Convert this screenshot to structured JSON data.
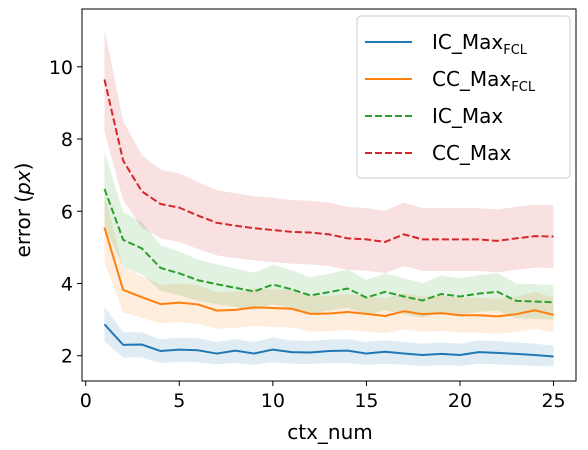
{
  "chart_data": {
    "type": "line",
    "xlabel": "ctx_num",
    "ylabel_prefix": "error (",
    "ylabel_italic": "px",
    "ylabel_suffix": ")",
    "xlim": [
      -0.2,
      26.2
    ],
    "ylim": [
      1.3,
      11.6
    ],
    "xticks": [
      0,
      5,
      10,
      15,
      20,
      25
    ],
    "yticks": [
      2,
      4,
      6,
      8,
      10
    ],
    "grid": false,
    "legend_position": "top-right",
    "x": [
      1,
      2,
      3,
      4,
      5,
      6,
      7,
      8,
      9,
      10,
      11,
      12,
      13,
      14,
      15,
      16,
      17,
      18,
      19,
      20,
      21,
      22,
      23,
      24,
      25
    ],
    "series": [
      {
        "name_main": "IC_Max",
        "name_sub": "FCL",
        "color": "#1f77b4",
        "dash": "solid",
        "values": [
          2.87,
          2.3,
          2.31,
          2.13,
          2.17,
          2.15,
          2.06,
          2.14,
          2.06,
          2.17,
          2.1,
          2.09,
          2.13,
          2.14,
          2.06,
          2.11,
          2.06,
          2.02,
          2.05,
          2.02,
          2.1,
          2.08,
          2.05,
          2.02,
          1.98
        ],
        "lower": [
          2.4,
          1.95,
          1.95,
          1.8,
          1.83,
          1.82,
          1.76,
          1.8,
          1.75,
          1.82,
          1.78,
          1.77,
          1.8,
          1.8,
          1.75,
          1.78,
          1.75,
          1.72,
          1.74,
          1.72,
          1.78,
          1.76,
          1.74,
          1.72,
          1.7
        ],
        "upper": [
          3.35,
          2.65,
          2.65,
          2.45,
          2.5,
          2.48,
          2.38,
          2.46,
          2.38,
          2.5,
          2.42,
          2.41,
          2.45,
          2.46,
          2.38,
          2.43,
          2.38,
          2.33,
          2.37,
          2.33,
          2.42,
          2.4,
          2.37,
          2.33,
          2.28
        ]
      },
      {
        "name_main": "CC_Max",
        "name_sub": "FCL",
        "color": "#ff7f0e",
        "dash": "solid",
        "values": [
          5.55,
          3.82,
          3.62,
          3.43,
          3.47,
          3.42,
          3.25,
          3.27,
          3.34,
          3.32,
          3.3,
          3.16,
          3.17,
          3.21,
          3.16,
          3.1,
          3.23,
          3.15,
          3.18,
          3.12,
          3.12,
          3.09,
          3.15,
          3.26,
          3.13
        ],
        "lower": [
          4.6,
          3.2,
          3.05,
          2.9,
          2.93,
          2.88,
          2.75,
          2.77,
          2.82,
          2.8,
          2.78,
          2.67,
          2.68,
          2.71,
          2.67,
          2.62,
          2.73,
          2.66,
          2.69,
          2.64,
          2.64,
          2.61,
          2.66,
          2.75,
          2.65
        ],
        "upper": [
          6.5,
          4.45,
          4.2,
          3.96,
          4.0,
          3.95,
          3.75,
          3.77,
          3.86,
          3.84,
          3.82,
          3.65,
          3.66,
          3.71,
          3.65,
          3.58,
          3.73,
          3.64,
          3.67,
          3.6,
          3.6,
          3.57,
          3.64,
          3.77,
          3.61
        ]
      },
      {
        "name_main": "IC_Max",
        "name_sub": "",
        "color": "#2ca02c",
        "dash": "dashed",
        "values": [
          6.62,
          5.21,
          4.97,
          4.43,
          4.28,
          4.09,
          3.98,
          3.88,
          3.78,
          3.97,
          3.84,
          3.67,
          3.76,
          3.86,
          3.61,
          3.77,
          3.64,
          3.53,
          3.71,
          3.64,
          3.72,
          3.77,
          3.52,
          3.5,
          3.48
        ],
        "lower": [
          5.6,
          4.45,
          4.25,
          3.8,
          3.68,
          3.52,
          3.43,
          3.35,
          3.26,
          3.42,
          3.31,
          3.17,
          3.25,
          3.33,
          3.12,
          3.26,
          3.14,
          3.05,
          3.2,
          3.14,
          3.21,
          3.25,
          3.04,
          3.02,
          3.0
        ],
        "upper": [
          7.65,
          5.98,
          5.7,
          5.06,
          4.88,
          4.66,
          4.53,
          4.41,
          4.3,
          4.52,
          4.37,
          4.17,
          4.27,
          4.39,
          4.1,
          4.28,
          4.14,
          4.01,
          4.22,
          4.14,
          4.23,
          4.29,
          4.0,
          3.98,
          3.96
        ]
      },
      {
        "name_main": "CC_Max",
        "name_sub": "",
        "color": "#d62728",
        "dash": "dashed",
        "values": [
          9.65,
          7.4,
          6.55,
          6.2,
          6.1,
          5.88,
          5.68,
          5.6,
          5.53,
          5.48,
          5.43,
          5.41,
          5.36,
          5.25,
          5.22,
          5.15,
          5.36,
          5.22,
          5.22,
          5.22,
          5.22,
          5.18,
          5.25,
          5.31,
          5.3
        ],
        "lower": [
          8.2,
          6.3,
          5.55,
          5.25,
          5.15,
          4.95,
          4.78,
          4.7,
          4.64,
          4.59,
          4.55,
          4.53,
          4.48,
          4.38,
          4.35,
          4.29,
          4.48,
          4.35,
          4.35,
          4.35,
          4.35,
          4.31,
          4.38,
          4.44,
          4.43
        ],
        "upper": [
          11.05,
          8.5,
          7.55,
          7.15,
          7.05,
          6.81,
          6.58,
          6.5,
          6.42,
          6.37,
          6.31,
          6.29,
          6.24,
          6.12,
          6.09,
          6.01,
          6.24,
          6.09,
          6.09,
          6.09,
          6.09,
          6.05,
          6.12,
          6.18,
          6.17
        ]
      }
    ]
  }
}
